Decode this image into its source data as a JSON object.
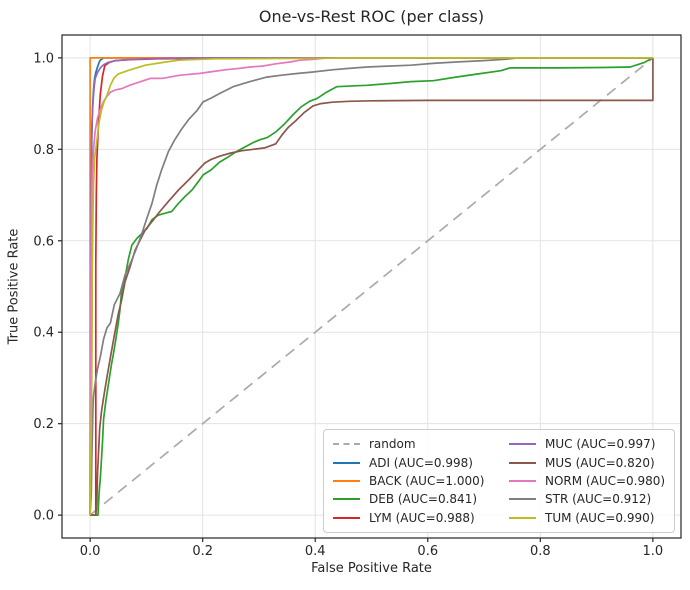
{
  "chart_data": {
    "type": "line",
    "title": "One-vs-Rest ROC (per class)",
    "xlabel": "False Positive Rate",
    "ylabel": "True Positive Rate",
    "xlim": [
      -0.05,
      1.05
    ],
    "ylim": [
      -0.05,
      1.05
    ],
    "xticks": [
      0,
      0.2,
      0.4,
      0.6,
      0.8,
      1
    ],
    "yticks": [
      0,
      0.2,
      0.4,
      0.6,
      0.8,
      1
    ],
    "xtick_labels": [
      "0.0",
      "0.2",
      "0.4",
      "0.6",
      "0.8",
      "1.0"
    ],
    "ytick_labels": [
      "0.0",
      "0.2",
      "0.4",
      "0.6",
      "0.8",
      "1.0"
    ],
    "grid": true,
    "grid_color": "#e3e3e3",
    "spine_color": "#262626",
    "legend": {
      "position": "lower-right",
      "columns": 2
    },
    "series": [
      {
        "name": "random",
        "label": "random",
        "color": "#aaaaaa",
        "style": "dashed",
        "points": [
          [
            0,
            0
          ],
          [
            1,
            1
          ]
        ]
      },
      {
        "name": "ADI",
        "label": "ADI (AUC=0.998)",
        "auc": "0.998",
        "color": "#1f77b4",
        "style": "solid",
        "points": [
          [
            0,
            0
          ],
          [
            0.001,
            0.4
          ],
          [
            0.002,
            0.7
          ],
          [
            0.003,
            0.82
          ],
          [
            0.004,
            0.88
          ],
          [
            0.006,
            0.93
          ],
          [
            0.008,
            0.955
          ],
          [
            0.01,
            0.968
          ],
          [
            0.013,
            0.98
          ],
          [
            0.016,
            0.99
          ],
          [
            0.018,
            0.995
          ],
          [
            0.024,
            1.0
          ],
          [
            1,
            1
          ]
        ]
      },
      {
        "name": "BACK",
        "label": "BACK (AUC=1.000)",
        "auc": "1.000",
        "color": "#ff7f0e",
        "style": "solid",
        "points": [
          [
            0,
            0
          ],
          [
            0,
            1
          ],
          [
            1,
            1
          ]
        ]
      },
      {
        "name": "DEB",
        "label": "DEB (AUC=0.841)",
        "auc": "0.841",
        "color": "#2ca02c",
        "style": "solid",
        "points": [
          [
            0,
            0
          ],
          [
            0.014,
            0
          ],
          [
            0.016,
            0.05
          ],
          [
            0.018,
            0.08
          ],
          [
            0.02,
            0.12
          ],
          [
            0.022,
            0.16
          ],
          [
            0.024,
            0.21
          ],
          [
            0.028,
            0.25
          ],
          [
            0.033,
            0.29
          ],
          [
            0.038,
            0.33
          ],
          [
            0.041,
            0.35
          ],
          [
            0.045,
            0.38
          ],
          [
            0.05,
            0.42
          ],
          [
            0.053,
            0.45
          ],
          [
            0.056,
            0.49
          ],
          [
            0.062,
            0.52
          ],
          [
            0.068,
            0.56
          ],
          [
            0.074,
            0.59
          ],
          [
            0.083,
            0.605
          ],
          [
            0.092,
            0.616
          ],
          [
            0.101,
            0.627
          ],
          [
            0.11,
            0.646
          ],
          [
            0.121,
            0.656
          ],
          [
            0.135,
            0.661
          ],
          [
            0.145,
            0.664
          ],
          [
            0.157,
            0.682
          ],
          [
            0.169,
            0.697
          ],
          [
            0.181,
            0.711
          ],
          [
            0.192,
            0.729
          ],
          [
            0.201,
            0.744
          ],
          [
            0.215,
            0.755
          ],
          [
            0.23,
            0.772
          ],
          [
            0.245,
            0.783
          ],
          [
            0.26,
            0.795
          ],
          [
            0.275,
            0.805
          ],
          [
            0.29,
            0.815
          ],
          [
            0.302,
            0.821
          ],
          [
            0.315,
            0.826
          ],
          [
            0.33,
            0.838
          ],
          [
            0.345,
            0.855
          ],
          [
            0.36,
            0.875
          ],
          [
            0.375,
            0.893
          ],
          [
            0.39,
            0.905
          ],
          [
            0.403,
            0.911
          ],
          [
            0.42,
            0.925
          ],
          [
            0.438,
            0.937
          ],
          [
            0.47,
            0.939
          ],
          [
            0.492,
            0.94
          ],
          [
            0.533,
            0.944
          ],
          [
            0.57,
            0.948
          ],
          [
            0.61,
            0.95
          ],
          [
            0.65,
            0.958
          ],
          [
            0.69,
            0.965
          ],
          [
            0.73,
            0.972
          ],
          [
            0.746,
            0.978
          ],
          [
            0.83,
            0.978
          ],
          [
            0.91,
            0.979
          ],
          [
            0.96,
            0.98
          ],
          [
            0.985,
            0.99
          ],
          [
            1,
            1
          ]
        ]
      },
      {
        "name": "LYM",
        "label": "LYM (AUC=0.988)",
        "auc": "0.988",
        "color": "#d62728",
        "style": "solid",
        "points": [
          [
            0.01,
            0
          ],
          [
            0.01,
            0.55
          ],
          [
            0.011,
            0.7
          ],
          [
            0.012,
            0.78
          ],
          [
            0.015,
            0.86
          ],
          [
            0.018,
            0.92
          ],
          [
            0.022,
            0.96
          ],
          [
            0.026,
            0.983
          ],
          [
            0.034,
            0.99
          ],
          [
            0.045,
            0.994
          ],
          [
            0.07,
            0.996
          ],
          [
            0.12,
            0.998
          ],
          [
            0.23,
            0.999
          ],
          [
            0.26,
            1.0
          ],
          [
            1,
            1
          ]
        ]
      },
      {
        "name": "MUC",
        "label": "MUC (AUC=0.997)",
        "auc": "0.997",
        "color": "#9467bd",
        "style": "solid",
        "points": [
          [
            0,
            0
          ],
          [
            0.001,
            0.5
          ],
          [
            0.002,
            0.75
          ],
          [
            0.003,
            0.85
          ],
          [
            0.005,
            0.9
          ],
          [
            0.007,
            0.935
          ],
          [
            0.009,
            0.955
          ],
          [
            0.013,
            0.968
          ],
          [
            0.018,
            0.978
          ],
          [
            0.024,
            0.985
          ],
          [
            0.032,
            0.99
          ],
          [
            0.045,
            0.994
          ],
          [
            0.065,
            0.996
          ],
          [
            0.095,
            0.998
          ],
          [
            0.13,
            0.999
          ],
          [
            0.2,
            1.0
          ],
          [
            1,
            1
          ]
        ]
      },
      {
        "name": "MUS",
        "label": "MUS (AUC=0.820)",
        "auc": "0.820",
        "color": "#8c564b",
        "style": "solid",
        "points": [
          [
            0,
            0
          ],
          [
            0.01,
            0
          ],
          [
            0.012,
            0.03
          ],
          [
            0.013,
            0.09
          ],
          [
            0.015,
            0.14
          ],
          [
            0.017,
            0.19
          ],
          [
            0.02,
            0.225
          ],
          [
            0.023,
            0.25
          ],
          [
            0.027,
            0.28
          ],
          [
            0.031,
            0.31
          ],
          [
            0.036,
            0.345
          ],
          [
            0.044,
            0.4
          ],
          [
            0.05,
            0.44
          ],
          [
            0.056,
            0.47
          ],
          [
            0.062,
            0.51
          ],
          [
            0.071,
            0.543
          ],
          [
            0.08,
            0.58
          ],
          [
            0.089,
            0.602
          ],
          [
            0.098,
            0.624
          ],
          [
            0.11,
            0.642
          ],
          [
            0.124,
            0.664
          ],
          [
            0.139,
            0.686
          ],
          [
            0.157,
            0.711
          ],
          [
            0.175,
            0.733
          ],
          [
            0.192,
            0.755
          ],
          [
            0.204,
            0.77
          ],
          [
            0.215,
            0.778
          ],
          [
            0.23,
            0.785
          ],
          [
            0.25,
            0.792
          ],
          [
            0.27,
            0.797
          ],
          [
            0.29,
            0.8
          ],
          [
            0.31,
            0.803
          ],
          [
            0.33,
            0.812
          ],
          [
            0.34,
            0.83
          ],
          [
            0.352,
            0.848
          ],
          [
            0.365,
            0.862
          ],
          [
            0.38,
            0.88
          ],
          [
            0.396,
            0.895
          ],
          [
            0.41,
            0.9
          ],
          [
            0.43,
            0.903
          ],
          [
            0.46,
            0.905
          ],
          [
            0.5,
            0.906
          ],
          [
            0.6,
            0.907
          ],
          [
            0.75,
            0.907
          ],
          [
            0.9,
            0.907
          ],
          [
            1.0,
            0.907
          ],
          [
            1.0,
            1.0
          ]
        ]
      },
      {
        "name": "NORM",
        "label": "NORM (AUC=0.980)",
        "auc": "0.980",
        "color": "#e377c2",
        "style": "solid",
        "points": [
          [
            0,
            0
          ],
          [
            0.001,
            0.45
          ],
          [
            0.002,
            0.6
          ],
          [
            0.003,
            0.7
          ],
          [
            0.004,
            0.75
          ],
          [
            0.006,
            0.8
          ],
          [
            0.009,
            0.84
          ],
          [
            0.013,
            0.868
          ],
          [
            0.018,
            0.888
          ],
          [
            0.024,
            0.905
          ],
          [
            0.03,
            0.916
          ],
          [
            0.036,
            0.925
          ],
          [
            0.045,
            0.93
          ],
          [
            0.057,
            0.933
          ],
          [
            0.07,
            0.94
          ],
          [
            0.09,
            0.948
          ],
          [
            0.107,
            0.955
          ],
          [
            0.128,
            0.955
          ],
          [
            0.16,
            0.962
          ],
          [
            0.195,
            0.966
          ],
          [
            0.217,
            0.97
          ],
          [
            0.24,
            0.974
          ],
          [
            0.265,
            0.977
          ],
          [
            0.284,
            0.98
          ],
          [
            0.306,
            0.982
          ],
          [
            0.33,
            0.987
          ],
          [
            0.355,
            0.991
          ],
          [
            0.373,
            0.995
          ],
          [
            0.4,
            0.997
          ],
          [
            0.414,
            0.999
          ],
          [
            0.45,
            1.0
          ],
          [
            1,
            1
          ]
        ]
      },
      {
        "name": "STR",
        "label": "STR (AUC=0.912)",
        "auc": "0.912",
        "color": "#7f7f7f",
        "style": "solid",
        "points": [
          [
            0,
            0
          ],
          [
            0.002,
            0.05
          ],
          [
            0.003,
            0.12
          ],
          [
            0.004,
            0.18
          ],
          [
            0.005,
            0.23
          ],
          [
            0.006,
            0.26
          ],
          [
            0.009,
            0.288
          ],
          [
            0.013,
            0.32
          ],
          [
            0.018,
            0.346
          ],
          [
            0.024,
            0.385
          ],
          [
            0.03,
            0.41
          ],
          [
            0.036,
            0.42
          ],
          [
            0.043,
            0.46
          ],
          [
            0.053,
            0.485
          ],
          [
            0.062,
            0.525
          ],
          [
            0.074,
            0.558
          ],
          [
            0.083,
            0.585
          ],
          [
            0.092,
            0.616
          ],
          [
            0.101,
            0.65
          ],
          [
            0.11,
            0.682
          ],
          [
            0.118,
            0.72
          ],
          [
            0.127,
            0.755
          ],
          [
            0.139,
            0.795
          ],
          [
            0.15,
            0.82
          ],
          [
            0.163,
            0.845
          ],
          [
            0.175,
            0.865
          ],
          [
            0.19,
            0.885
          ],
          [
            0.201,
            0.904
          ],
          [
            0.215,
            0.912
          ],
          [
            0.23,
            0.922
          ],
          [
            0.254,
            0.937
          ],
          [
            0.27,
            0.943
          ],
          [
            0.284,
            0.948
          ],
          [
            0.314,
            0.958
          ],
          [
            0.34,
            0.962
          ],
          [
            0.37,
            0.966
          ],
          [
            0.396,
            0.969
          ],
          [
            0.43,
            0.974
          ],
          [
            0.46,
            0.977
          ],
          [
            0.492,
            0.98
          ],
          [
            0.53,
            0.982
          ],
          [
            0.57,
            0.984
          ],
          [
            0.609,
            0.988
          ],
          [
            0.65,
            0.991
          ],
          [
            0.7,
            0.994
          ],
          [
            0.74,
            0.997
          ],
          [
            0.76,
            1.0
          ],
          [
            1,
            1
          ]
        ]
      },
      {
        "name": "TUM",
        "label": "TUM (AUC=0.990)",
        "auc": "0.990",
        "color": "#bcbd22",
        "style": "solid",
        "points": [
          [
            0,
            0
          ],
          [
            0.003,
            0.3
          ],
          [
            0.004,
            0.55
          ],
          [
            0.005,
            0.65
          ],
          [
            0.006,
            0.72
          ],
          [
            0.008,
            0.78
          ],
          [
            0.01,
            0.8
          ],
          [
            0.013,
            0.83
          ],
          [
            0.016,
            0.86
          ],
          [
            0.02,
            0.885
          ],
          [
            0.025,
            0.905
          ],
          [
            0.03,
            0.918
          ],
          [
            0.036,
            0.94
          ],
          [
            0.042,
            0.955
          ],
          [
            0.05,
            0.965
          ],
          [
            0.069,
            0.973
          ],
          [
            0.098,
            0.984
          ],
          [
            0.13,
            0.99
          ],
          [
            0.158,
            0.995
          ],
          [
            0.22,
            0.998
          ],
          [
            0.4,
            0.999
          ],
          [
            0.5,
            1.0
          ],
          [
            1,
            1
          ]
        ]
      }
    ]
  }
}
